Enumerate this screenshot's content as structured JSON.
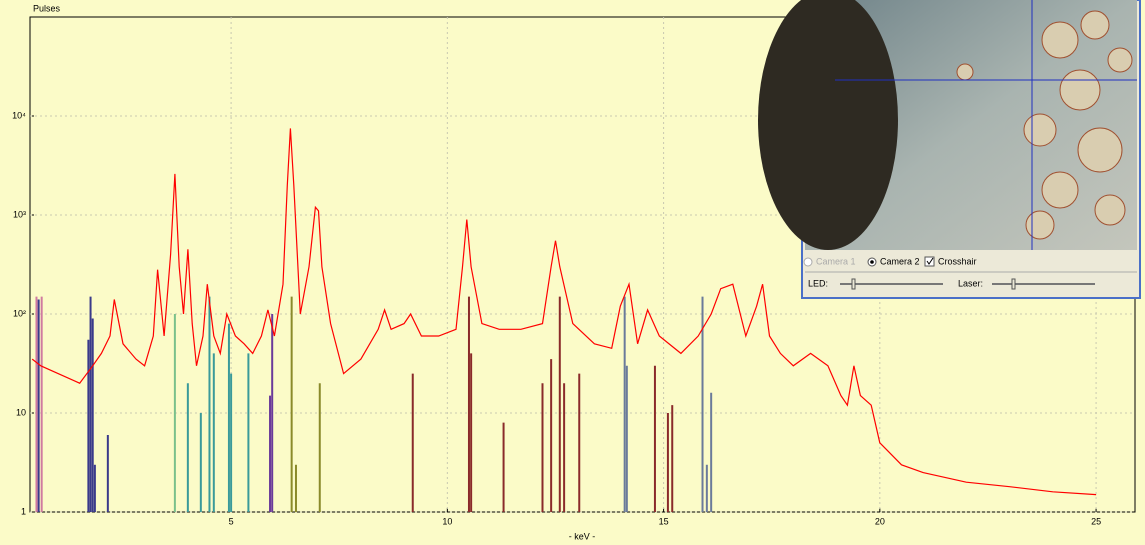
{
  "chart_data": {
    "type": "line",
    "y_label": "Pulses",
    "x_label": "- keV -",
    "xlim": [
      0.35,
      25.9
    ],
    "ylim": [
      1,
      100000
    ],
    "log_y": true,
    "grid": true,
    "xticks": [
      5,
      10,
      15,
      20,
      25
    ],
    "yticks": [
      1,
      10,
      {
        "value": 100,
        "label": "10²"
      },
      {
        "value": 1000,
        "label": "10³"
      },
      {
        "value": 10000,
        "label": "10⁴"
      }
    ],
    "x": [
      0.4,
      0.6,
      1.0,
      1.5,
      1.8,
      2.0,
      2.2,
      2.3,
      2.5,
      2.8,
      3.0,
      3.2,
      3.3,
      3.45,
      3.6,
      3.7,
      3.8,
      3.9,
      4.0,
      4.1,
      4.2,
      4.35,
      4.45,
      4.6,
      4.75,
      4.9,
      5.1,
      5.3,
      5.5,
      5.7,
      5.85,
      6.0,
      6.2,
      6.3,
      6.37,
      6.45,
      6.6,
      6.8,
      6.95,
      7.02,
      7.1,
      7.3,
      7.6,
      8.0,
      8.4,
      8.55,
      8.7,
      9.0,
      9.15,
      9.4,
      9.8,
      10.2,
      10.35,
      10.45,
      10.55,
      10.8,
      11.2,
      11.7,
      12.2,
      12.4,
      12.5,
      12.6,
      12.9,
      13.4,
      13.8,
      14.0,
      14.2,
      14.4,
      14.63,
      14.9,
      15.4,
      15.8,
      16.1,
      16.32,
      16.6,
      16.9,
      17.15,
      17.29,
      17.45,
      17.7,
      18.0,
      18.4,
      18.8,
      19.1,
      19.25,
      19.4,
      19.55,
      19.8,
      20.0,
      20.5,
      21,
      22,
      23,
      24,
      25
    ],
    "series": [
      {
        "color": "#ff0000",
        "values": [
          35,
          30,
          25,
          20,
          30,
          40,
          60,
          140,
          50,
          35,
          30,
          60,
          280,
          60,
          400,
          2600,
          300,
          100,
          450,
          80,
          30,
          60,
          200,
          60,
          40,
          100,
          60,
          50,
          40,
          60,
          110,
          60,
          200,
          2000,
          7500,
          2000,
          100,
          300,
          1200,
          1100,
          300,
          80,
          25,
          35,
          70,
          110,
          70,
          80,
          100,
          60,
          60,
          70,
          300,
          900,
          300,
          80,
          70,
          70,
          80,
          300,
          550,
          300,
          80,
          50,
          45,
          120,
          200,
          50,
          110,
          60,
          40,
          60,
          100,
          180,
          200,
          60,
          120,
          200,
          60,
          40,
          30,
          40,
          30,
          15,
          12,
          30,
          15,
          12,
          5,
          3,
          2.5,
          2,
          1.8,
          1.6,
          1.5
        ]
      }
    ],
    "element_lines": {
      "x": [
        0.5,
        0.55,
        0.62,
        1.7,
        1.75,
        1.8,
        1.85,
        2.15,
        3.7,
        4.0,
        4.3,
        4.5,
        4.6,
        4.95,
        5.0,
        5.4,
        5.9,
        5.95,
        6.4,
        6.5,
        7.05,
        9.2,
        10.5,
        10.55,
        11.3,
        12.2,
        12.4,
        12.6,
        12.7,
        13.05,
        14.1,
        14.15,
        14.8,
        15.1,
        15.2,
        15.9,
        16.0,
        16.1
      ],
      "values": [
        150,
        140,
        150,
        55,
        150,
        90,
        3,
        6,
        100,
        20,
        10,
        150,
        40,
        80,
        25,
        40,
        15,
        100,
        150,
        3,
        20,
        25,
        150,
        40,
        8,
        20,
        35,
        150,
        20,
        25,
        150,
        30,
        30,
        10,
        12,
        150,
        3,
        16
      ],
      "colors": [
        "#d07aa0",
        "#3a3a8a",
        "#d07aa0",
        "#3a3a8a",
        "#3a3a8a",
        "#3a3a8a",
        "#3a3a8a",
        "#3a3a8a",
        "#7ac08a",
        "#3a9a9a",
        "#3a9a9a",
        "#3a9a9a",
        "#3a9a9a",
        "#3a9a9a",
        "#3a9a9a",
        "#3a9a9a",
        "#6a3a9a",
        "#6a3a9a",
        "#8a8a2a",
        "#8a8a2a",
        "#8a8a2a",
        "#8a2a2a",
        "#8a2a2a",
        "#8a2a2a",
        "#8a2a2a",
        "#8a2a2a",
        "#8a2a2a",
        "#8a2a2a",
        "#8a2a2a",
        "#8a2a2a",
        "#6a7a9a",
        "#6a7a9a",
        "#8a2a2a",
        "#8a2a2a",
        "#8a2a2a",
        "#6a7a9a",
        "#6a7a9a",
        "#6a7a9a"
      ]
    }
  },
  "camera_panel": {
    "camera_1": "Camera 1",
    "camera_2": "Camera 2",
    "crosshair": "Crosshair",
    "led": "LED:",
    "laser": "Laser:"
  }
}
